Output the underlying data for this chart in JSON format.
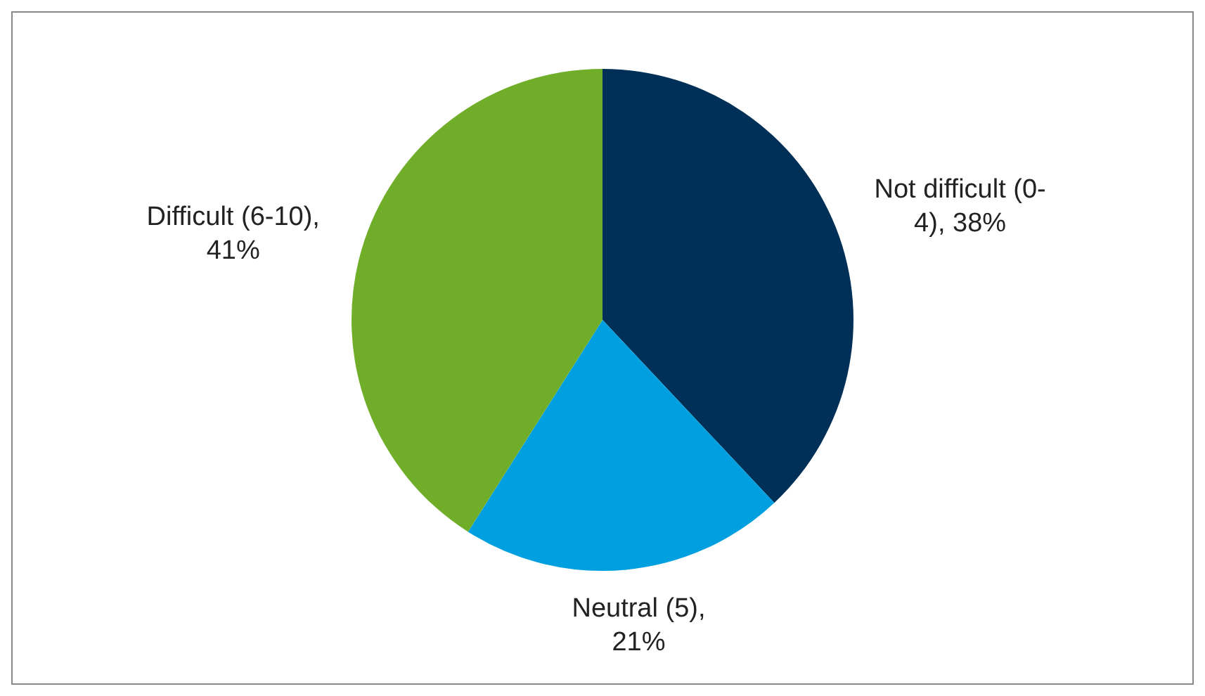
{
  "chart_data": {
    "type": "pie",
    "categories": [
      "Not difficult (0-4), 38%",
      "Neutral (5), 21%",
      "Difficult (6-10), 41%"
    ],
    "values": [
      38,
      21,
      41
    ],
    "colors": [
      "#003057",
      "#009fdf",
      "#70ae2a"
    ],
    "legend": false
  }
}
